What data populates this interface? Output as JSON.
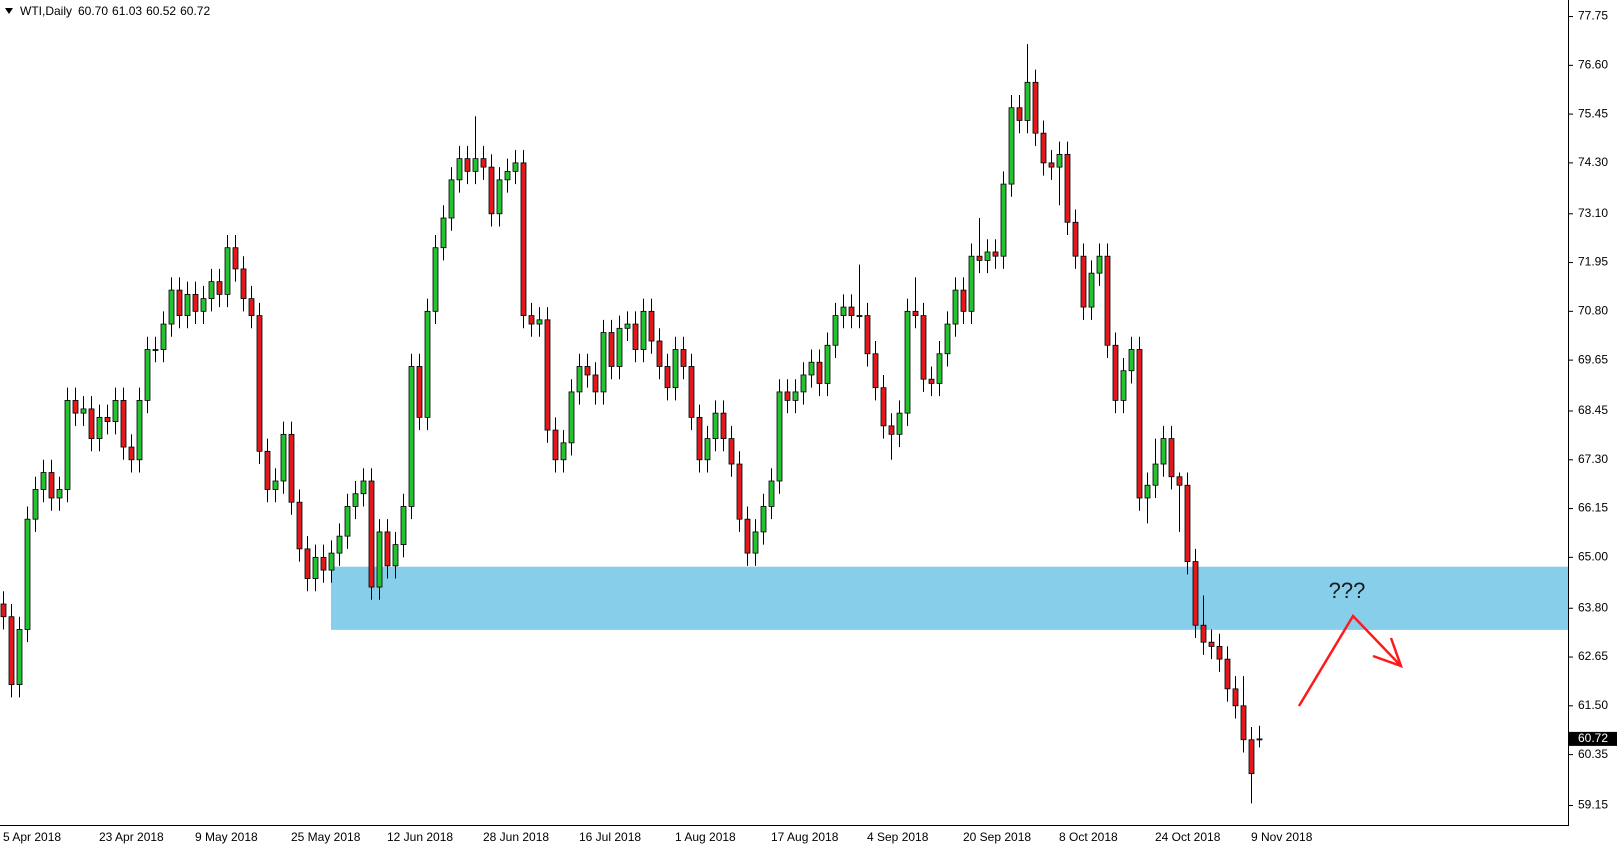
{
  "chart_data": {
    "type": "candlestick",
    "title": "WTI,Daily",
    "ohlc_labels": [
      "60.70",
      "61.03",
      "60.52",
      "60.72"
    ],
    "up_color": "#22c32e",
    "down_color": "#e3191b",
    "grid": false,
    "categories": [
      "5 Apr 2018",
      null,
      null,
      null,
      null,
      null,
      null,
      null,
      null,
      null,
      null,
      null,
      "23 Apr 2018",
      null,
      null,
      null,
      null,
      null,
      null,
      null,
      null,
      null,
      null,
      null,
      "9 May 2018",
      null,
      null,
      null,
      null,
      null,
      null,
      null,
      null,
      null,
      null,
      null,
      "25 May 2018",
      null,
      null,
      null,
      null,
      null,
      null,
      null,
      null,
      null,
      null,
      null,
      "12 Jun 2018",
      null,
      null,
      null,
      null,
      null,
      null,
      null,
      null,
      null,
      null,
      null,
      "28 Jun 2018",
      null,
      null,
      null,
      null,
      null,
      null,
      null,
      null,
      null,
      null,
      null,
      "16 Jul 2018",
      null,
      null,
      null,
      null,
      null,
      null,
      null,
      null,
      null,
      null,
      null,
      "1 Aug 2018",
      null,
      null,
      null,
      null,
      null,
      null,
      null,
      null,
      null,
      null,
      null,
      "17 Aug 2018",
      null,
      null,
      null,
      null,
      null,
      null,
      null,
      null,
      null,
      null,
      null,
      "4 Sep 2018",
      null,
      null,
      null,
      null,
      null,
      null,
      null,
      null,
      null,
      null,
      null,
      "20 Sep 2018",
      null,
      null,
      null,
      null,
      null,
      null,
      null,
      null,
      null,
      null,
      null,
      "8 Oct 2018",
      null,
      null,
      null,
      null,
      null,
      null,
      null,
      null,
      null,
      null,
      null,
      "24 Oct 2018",
      null,
      null,
      null,
      null,
      null,
      null,
      null,
      null,
      null,
      null,
      null,
      "9 Nov 2018",
      null
    ],
    "open": [
      63.9,
      63.6,
      62.0,
      63.3,
      65.9,
      66.6,
      67.0,
      66.4,
      66.6,
      68.7,
      68.4,
      68.5,
      67.8,
      68.3,
      68.2,
      68.7,
      67.6,
      67.3,
      68.7,
      69.9,
      69.9,
      70.5,
      71.3,
      70.7,
      71.2,
      70.8,
      71.1,
      71.5,
      71.2,
      72.3,
      71.8,
      71.1,
      70.7,
      67.5,
      66.6,
      66.8,
      67.9,
      66.3,
      65.2,
      64.5,
      65.0,
      64.7,
      65.1,
      65.5,
      66.2,
      66.5,
      66.8,
      64.3,
      65.6,
      64.8,
      65.3,
      66.2,
      69.5,
      68.3,
      70.8,
      72.3,
      73.0,
      73.9,
      74.4,
      74.1,
      74.4,
      74.2,
      73.1,
      73.9,
      74.1,
      74.3,
      70.7,
      70.5,
      70.6,
      68.0,
      67.3,
      67.7,
      68.9,
      69.5,
      69.3,
      68.9,
      70.3,
      69.5,
      70.4,
      70.5,
      69.9,
      70.8,
      70.1,
      69.5,
      69.0,
      69.9,
      69.5,
      68.3,
      67.3,
      67.8,
      68.4,
      67.8,
      67.2,
      65.9,
      65.1,
      65.6,
      66.2,
      66.8,
      68.9,
      68.7,
      68.9,
      69.3,
      69.6,
      69.1,
      70.0,
      70.7,
      70.9,
      70.7,
      70.7,
      69.8,
      69.0,
      68.1,
      67.9,
      68.4,
      70.8,
      70.7,
      69.2,
      69.1,
      69.8,
      70.5,
      71.3,
      70.8,
      72.1,
      72.0,
      72.2,
      72.1,
      73.8,
      75.6,
      75.3,
      76.2,
      75.0,
      74.3,
      74.2,
      74.5,
      72.9,
      72.1,
      70.9,
      71.7,
      72.1,
      70.0,
      68.7,
      69.4,
      69.9,
      66.4,
      66.7,
      67.2,
      67.8,
      66.9,
      66.7,
      64.9,
      63.4,
      63.0,
      62.9,
      62.6,
      61.9,
      61.5,
      60.7,
      60.7
    ],
    "high": [
      64.2,
      63.9,
      63.6,
      66.2,
      66.9,
      67.3,
      67.3,
      66.9,
      69.0,
      69.0,
      68.8,
      68.8,
      68.6,
      68.6,
      69.0,
      69.0,
      67.9,
      69.0,
      70.2,
      70.2,
      70.8,
      71.6,
      71.6,
      71.5,
      71.5,
      71.4,
      71.8,
      71.8,
      72.6,
      72.6,
      72.1,
      71.4,
      71.0,
      67.8,
      67.1,
      68.2,
      68.2,
      66.6,
      65.5,
      65.3,
      65.3,
      65.4,
      65.8,
      66.5,
      66.8,
      67.1,
      67.1,
      65.9,
      65.9,
      65.6,
      66.5,
      69.8,
      69.8,
      71.1,
      72.6,
      73.3,
      74.2,
      74.7,
      74.7,
      75.4,
      74.7,
      74.5,
      74.2,
      74.4,
      74.6,
      74.6,
      71.0,
      70.9,
      70.9,
      68.3,
      68.0,
      69.2,
      69.8,
      69.8,
      69.6,
      70.6,
      70.6,
      70.7,
      70.8,
      70.8,
      71.1,
      71.1,
      70.4,
      69.8,
      70.2,
      70.2,
      69.8,
      68.6,
      68.1,
      68.7,
      68.7,
      68.1,
      67.5,
      66.2,
      65.9,
      66.5,
      67.1,
      69.2,
      69.2,
      69.2,
      69.6,
      69.9,
      69.9,
      70.3,
      71.0,
      71.2,
      71.2,
      71.9,
      71.0,
      70.1,
      69.3,
      68.4,
      68.7,
      71.1,
      71.6,
      71.0,
      69.5,
      70.1,
      70.8,
      71.6,
      71.6,
      72.4,
      73.0,
      72.5,
      72.5,
      74.1,
      75.9,
      75.9,
      77.1,
      76.5,
      75.3,
      74.6,
      74.8,
      74.8,
      73.2,
      72.4,
      72.0,
      72.4,
      72.4,
      70.3,
      69.7,
      70.2,
      70.2,
      67.0,
      67.8,
      68.1,
      68.1,
      67.0,
      67.0,
      65.2,
      64.1,
      63.3,
      63.2,
      62.9,
      62.2,
      62.2,
      61.0,
      61.03
    ],
    "low": [
      63.3,
      61.7,
      61.7,
      63.0,
      65.6,
      66.3,
      66.1,
      66.1,
      66.3,
      68.1,
      68.1,
      67.5,
      67.5,
      67.9,
      67.9,
      67.3,
      67.0,
      67.0,
      68.4,
      69.6,
      69.6,
      70.2,
      70.4,
      70.4,
      70.5,
      70.5,
      70.8,
      70.9,
      70.9,
      71.5,
      70.8,
      70.4,
      67.2,
      66.3,
      66.3,
      66.5,
      66.0,
      64.9,
      64.2,
      64.2,
      64.4,
      64.4,
      64.8,
      65.2,
      65.9,
      66.2,
      64.0,
      64.0,
      64.5,
      64.5,
      65.0,
      65.9,
      68.0,
      68.0,
      70.5,
      72.0,
      72.7,
      73.6,
      73.8,
      73.8,
      73.9,
      72.8,
      72.8,
      73.6,
      73.8,
      70.4,
      70.2,
      70.2,
      67.7,
      67.0,
      67.0,
      67.4,
      68.6,
      69.0,
      68.6,
      68.6,
      69.2,
      69.2,
      70.1,
      69.6,
      69.6,
      69.8,
      69.2,
      68.7,
      68.7,
      69.2,
      68.0,
      67.0,
      67.0,
      67.5,
      67.5,
      66.9,
      65.6,
      64.8,
      64.8,
      65.3,
      65.9,
      66.5,
      68.4,
      68.4,
      68.6,
      69.0,
      68.8,
      68.8,
      69.7,
      70.4,
      70.4,
      70.4,
      69.5,
      68.7,
      67.8,
      67.3,
      67.6,
      68.1,
      70.4,
      68.9,
      68.8,
      68.8,
      69.5,
      70.2,
      70.5,
      70.5,
      71.7,
      71.7,
      71.8,
      71.8,
      73.5,
      75.0,
      75.0,
      74.7,
      74.0,
      73.9,
      73.3,
      72.6,
      71.8,
      70.6,
      70.6,
      71.4,
      69.7,
      68.4,
      68.4,
      69.1,
      66.1,
      65.8,
      66.4,
      66.9,
      66.6,
      65.6,
      64.6,
      63.1,
      62.7,
      62.6,
      62.3,
      61.6,
      61.2,
      60.4,
      59.2,
      60.52
    ],
    "close": [
      63.6,
      62.0,
      63.3,
      65.9,
      66.6,
      67.0,
      66.4,
      66.6,
      68.7,
      68.4,
      68.5,
      67.8,
      68.3,
      68.2,
      68.7,
      67.6,
      67.3,
      68.7,
      69.9,
      69.9,
      70.5,
      71.3,
      70.7,
      71.2,
      70.8,
      71.1,
      71.5,
      71.2,
      72.3,
      71.8,
      71.1,
      70.7,
      67.5,
      66.6,
      66.8,
      67.9,
      66.3,
      65.2,
      64.5,
      65.0,
      64.7,
      65.1,
      65.5,
      66.2,
      66.5,
      66.8,
      64.3,
      65.6,
      64.8,
      65.3,
      66.2,
      69.5,
      68.3,
      70.8,
      72.3,
      73.0,
      73.9,
      74.4,
      74.1,
      74.4,
      74.2,
      73.1,
      73.9,
      74.1,
      74.3,
      70.7,
      70.5,
      70.6,
      68.0,
      67.3,
      67.7,
      68.9,
      69.5,
      69.3,
      68.9,
      70.3,
      69.5,
      70.4,
      70.5,
      69.9,
      70.8,
      70.1,
      69.5,
      69.0,
      69.9,
      69.5,
      68.3,
      67.3,
      67.8,
      68.4,
      67.8,
      67.2,
      65.9,
      65.1,
      65.6,
      66.2,
      66.8,
      68.9,
      68.7,
      68.9,
      69.3,
      69.6,
      69.1,
      70.0,
      70.7,
      70.9,
      70.7,
      70.7,
      69.8,
      69.0,
      68.1,
      67.9,
      68.4,
      70.8,
      70.7,
      69.2,
      69.1,
      69.8,
      70.5,
      71.3,
      70.8,
      72.1,
      72.0,
      72.2,
      72.1,
      73.8,
      75.6,
      75.3,
      76.2,
      75.0,
      74.3,
      74.2,
      74.5,
      72.9,
      72.1,
      70.9,
      71.7,
      72.1,
      70.0,
      68.7,
      69.4,
      69.9,
      66.4,
      66.7,
      67.2,
      67.8,
      66.9,
      66.7,
      64.9,
      63.4,
      63.0,
      62.9,
      62.6,
      61.9,
      61.5,
      60.7,
      59.9,
      60.72
    ],
    "ylim": [
      58.69,
      78.14
    ],
    "yticks": [
      59.15,
      60.35,
      {
        "value": 61.5,
        "label": "61.50"
      },
      62.65,
      {
        "value": 63.8,
        "label": "63.80"
      },
      {
        "value": 65,
        "label": "65.00"
      },
      66.15,
      {
        "value": 67.3,
        "label": "67.30"
      },
      68.45,
      69.65,
      {
        "value": 70.8,
        "label": "70.80"
      },
      71.95,
      {
        "value": 73.1,
        "label": "73.10"
      },
      {
        "value": 74.3,
        "label": "74.30"
      },
      75.45,
      {
        "value": 76.6,
        "label": "76.60"
      },
      77.75
    ],
    "last_price": {
      "value": 60.72,
      "label": "60.72"
    },
    "zone": {
      "low": 63.29,
      "high": 64.78,
      "color": "#87ceeb"
    },
    "annotation": "???"
  }
}
